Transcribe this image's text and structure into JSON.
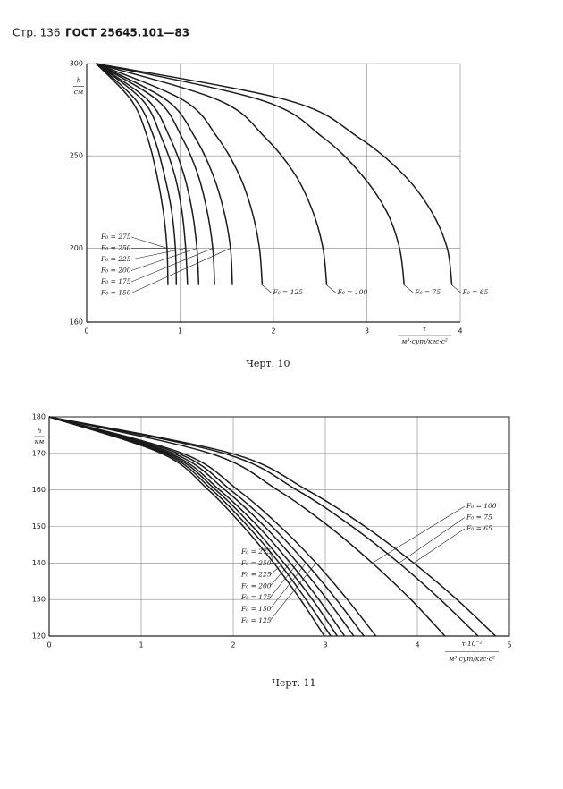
{
  "header": {
    "page": "Стр. 136",
    "standard": "ГОСТ 25645.101—83"
  },
  "chart_data": [
    {
      "type": "line",
      "caption": "Черт. 10",
      "y_label": "h",
      "y_unit": "см",
      "x_label": "τ",
      "x_unit": "м³·сут/кгс·с²",
      "xlim": [
        0,
        4
      ],
      "ylim": [
        160,
        300
      ],
      "xticks": [
        0,
        1,
        2,
        3,
        4
      ],
      "yticks": [
        160,
        200,
        250,
        300
      ],
      "grid": true,
      "color": "#1a1a1a",
      "y": [
        300,
        280,
        260,
        240,
        220,
        200,
        180
      ],
      "series": [
        {
          "name": "F₀ = 275",
          "x": [
            0.1,
            0.48,
            0.65,
            0.75,
            0.82,
            0.86,
            0.87
          ]
        },
        {
          "name": "F₀ = 250",
          "x": [
            0.1,
            0.53,
            0.72,
            0.83,
            0.91,
            0.95,
            0.96
          ]
        },
        {
          "name": "F₀ = 225",
          "x": [
            0.1,
            0.6,
            0.8,
            0.94,
            1.02,
            1.06,
            1.08
          ]
        },
        {
          "name": "F₀ = 200",
          "x": [
            0.1,
            0.66,
            0.89,
            1.04,
            1.13,
            1.18,
            1.2
          ]
        },
        {
          "name": "F₀ = 175",
          "x": [
            0.1,
            0.76,
            1.02,
            1.19,
            1.29,
            1.35,
            1.37
          ]
        },
        {
          "name": "F₀ = 150",
          "x": [
            0.1,
            0.86,
            1.16,
            1.35,
            1.47,
            1.54,
            1.56
          ]
        },
        {
          "name": "F₀ = 125",
          "x": [
            0.1,
            1.04,
            1.4,
            1.63,
            1.77,
            1.85,
            1.88
          ]
        },
        {
          "name": "F₀ = 100",
          "x": [
            0.1,
            1.42,
            1.91,
            2.23,
            2.42,
            2.53,
            2.57
          ]
        },
        {
          "name": "F₀ = 75",
          "x": [
            0.1,
            1.88,
            2.53,
            2.94,
            3.21,
            3.35,
            3.4
          ]
        },
        {
          "name": "F₀ = 65",
          "x": [
            0.1,
            2.16,
            2.91,
            3.39,
            3.69,
            3.86,
            3.91
          ]
        }
      ]
    },
    {
      "type": "line",
      "caption": "Черт. 11",
      "y_label": "h",
      "y_unit": "км",
      "x_label": "τ·10⁻²",
      "x_unit": "м³·сут/кгс·с²",
      "xlim": [
        0,
        5
      ],
      "ylim": [
        120,
        180
      ],
      "xticks": [
        0,
        1,
        2,
        3,
        4,
        5
      ],
      "yticks": [
        120,
        130,
        140,
        150,
        160,
        170,
        180
      ],
      "grid": true,
      "color": "#1a1a1a",
      "y": [
        180,
        170,
        160,
        150,
        140,
        130,
        120
      ],
      "series": [
        {
          "name": "F₀ = 275",
          "x": [
            0,
            1.22,
            1.73,
            2.11,
            2.44,
            2.73,
            2.99
          ]
        },
        {
          "name": "F₀ = 250",
          "x": [
            0,
            1.25,
            1.77,
            2.16,
            2.5,
            2.79,
            3.06
          ]
        },
        {
          "name": "F₀ = 225",
          "x": [
            0,
            1.28,
            1.81,
            2.21,
            2.55,
            2.86,
            3.13
          ]
        },
        {
          "name": "F₀ = 200",
          "x": [
            0,
            1.31,
            1.85,
            2.27,
            2.62,
            2.93,
            3.21
          ]
        },
        {
          "name": "F₀ = 175",
          "x": [
            0,
            1.35,
            1.91,
            2.34,
            2.7,
            3.02,
            3.31
          ]
        },
        {
          "name": "F₀ = 150",
          "x": [
            0,
            1.4,
            1.97,
            2.42,
            2.79,
            3.12,
            3.42
          ]
        },
        {
          "name": "F₀ = 125",
          "x": [
            0,
            1.45,
            2.05,
            2.51,
            2.9,
            3.24,
            3.55
          ]
        },
        {
          "name": "F₀ = 100",
          "x": [
            0,
            1.75,
            2.48,
            3.04,
            3.51,
            3.93,
            4.3
          ]
        },
        {
          "name": "F₀ = 75",
          "x": [
            0,
            1.9,
            2.69,
            3.29,
            3.8,
            4.25,
            4.66
          ]
        },
        {
          "name": "F₀ = 65",
          "x": [
            0,
            1.98,
            2.8,
            3.43,
            3.96,
            4.43,
            4.85
          ]
        }
      ]
    }
  ]
}
